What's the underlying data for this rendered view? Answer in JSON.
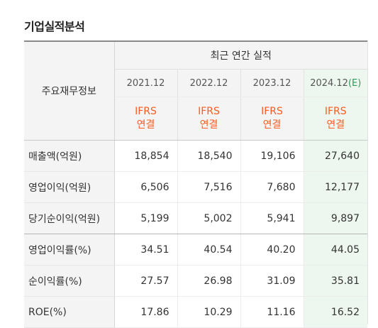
{
  "title": "기업실적분석",
  "table": {
    "label_header": "주요재무정보",
    "group_header": "최근 연간 실적",
    "years": [
      {
        "year": "2021.12",
        "suffix": ""
      },
      {
        "year": "2022.12",
        "suffix": ""
      },
      {
        "year": "2023.12",
        "suffix": ""
      },
      {
        "year": "2024.12",
        "suffix": "(E)"
      }
    ],
    "standard_line1": "IFRS",
    "standard_line2": "연결",
    "rows": [
      {
        "label": "매출액(억원)",
        "values": [
          "18,854",
          "18,540",
          "19,106",
          "27,640"
        ]
      },
      {
        "label": "영업이익(억원)",
        "values": [
          "6,506",
          "7,516",
          "7,680",
          "12,177"
        ]
      },
      {
        "label": "당기순이익(억원)",
        "values": [
          "5,199",
          "5,002",
          "5,941",
          "9,897"
        ]
      },
      {
        "label": "영업이익률(%)",
        "values": [
          "34.51",
          "40.54",
          "40.20",
          "44.05"
        ]
      },
      {
        "label": "순이익률(%)",
        "values": [
          "27.57",
          "26.98",
          "31.09",
          "35.81"
        ]
      },
      {
        "label": "ROE(%)",
        "values": [
          "17.86",
          "10.29",
          "11.16",
          "16.52"
        ]
      }
    ]
  },
  "colors": {
    "ifrs_text": "#ff5a1f",
    "estimate_text": "#2e9d5c",
    "estimate_column_bg": "#eef7ef",
    "header_bg": "#f4f4f4"
  }
}
